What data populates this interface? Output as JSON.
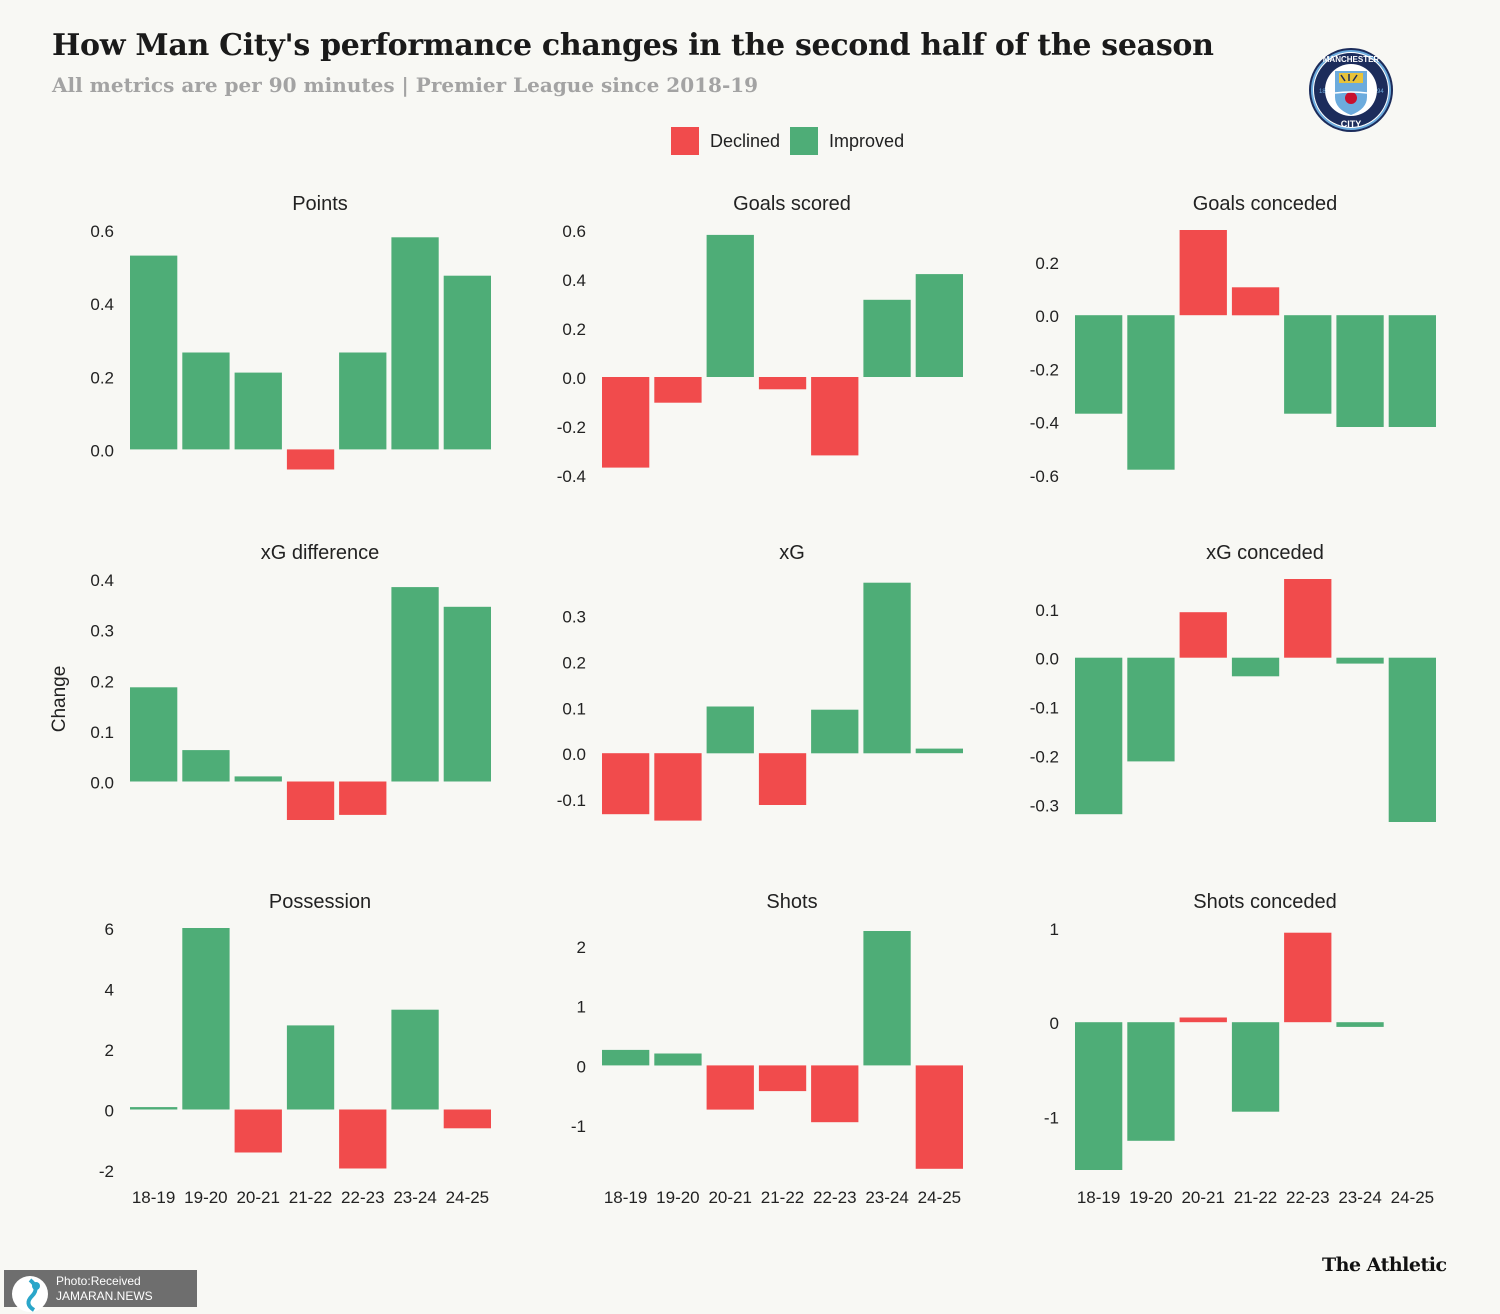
{
  "title": "How Man City's performance changes in the second half of the season",
  "subtitle": "All metrics are per 90 minutes | Premier League since 2018-19",
  "legend": {
    "declined": "Declined",
    "improved": "Improved"
  },
  "y_axis_label": "Change",
  "colors": {
    "declined": "#f14b4c",
    "improved": "#4ead77",
    "background": "#f8f8f4"
  },
  "badge": {
    "top_text": "MANCHESTER",
    "bottom_text": "CITY",
    "left_num": "18",
    "right_num": "94",
    "icon": "man-city-crest-icon"
  },
  "credit": "The Athletic",
  "photo_credit": {
    "line1": "Photo:Received",
    "line2": "JAMARAN.NEWS"
  },
  "chart_data": [
    {
      "type": "bar",
      "title": "Points",
      "categories": [
        "18-19",
        "19-20",
        "20-21",
        "21-22",
        "22-23",
        "23-24",
        "24-25"
      ],
      "values": [
        0.53,
        0.265,
        0.21,
        -0.055,
        0.265,
        0.58,
        0.475
      ],
      "status": [
        "improved",
        "improved",
        "improved",
        "declined",
        "improved",
        "improved",
        "improved"
      ],
      "ylim": [
        -0.07,
        0.6
      ],
      "yticks": [
        0.0,
        0.2,
        0.4,
        0.6
      ],
      "tick_labels": [
        "0.0",
        "0.2",
        "0.4",
        "0.6"
      ]
    },
    {
      "type": "bar",
      "title": "Goals scored",
      "categories": [
        "18-19",
        "19-20",
        "20-21",
        "21-22",
        "22-23",
        "23-24",
        "24-25"
      ],
      "values": [
        -0.37,
        -0.105,
        0.58,
        -0.05,
        -0.32,
        0.315,
        0.42
      ],
      "status": [
        "declined",
        "declined",
        "improved",
        "declined",
        "declined",
        "improved",
        "improved"
      ],
      "ylim": [
        -0.4,
        0.6
      ],
      "yticks": [
        -0.4,
        -0.2,
        0.0,
        0.2,
        0.4,
        0.6
      ],
      "tick_labels": [
        "-0.4",
        "-0.2",
        "0.0",
        "0.2",
        "0.4",
        "0.6"
      ]
    },
    {
      "type": "bar",
      "title": "Goals conceded",
      "categories": [
        "18-19",
        "19-20",
        "20-21",
        "21-22",
        "22-23",
        "23-24",
        "24-25"
      ],
      "values": [
        -0.37,
        -0.58,
        0.32,
        0.105,
        -0.37,
        -0.42,
        -0.42
      ],
      "status": [
        "improved",
        "improved",
        "declined",
        "declined",
        "improved",
        "improved",
        "improved"
      ],
      "ylim": [
        -0.6,
        0.32
      ],
      "yticks": [
        -0.6,
        -0.4,
        -0.2,
        0.0,
        0.2
      ],
      "tick_labels": [
        "-0.6",
        "-0.4",
        "-0.2",
        "0.0",
        "0.2"
      ]
    },
    {
      "type": "bar",
      "title": "xG difference",
      "categories": [
        "18-19",
        "19-20",
        "20-21",
        "21-22",
        "22-23",
        "23-24",
        "24-25"
      ],
      "values": [
        0.186,
        0.062,
        0.01,
        -0.076,
        -0.066,
        0.384,
        0.345
      ],
      "status": [
        "improved",
        "improved",
        "improved",
        "declined",
        "declined",
        "improved",
        "improved"
      ],
      "ylim": [
        -0.08,
        0.4
      ],
      "yticks": [
        0.0,
        0.1,
        0.2,
        0.3,
        0.4
      ],
      "tick_labels": [
        "0.0",
        "0.1",
        "0.2",
        "0.3",
        "0.4"
      ]
    },
    {
      "type": "bar",
      "title": "xG",
      "categories": [
        "18-19",
        "19-20",
        "20-21",
        "21-22",
        "22-23",
        "23-24",
        "24-25"
      ],
      "values": [
        -0.133,
        -0.147,
        0.102,
        -0.113,
        0.095,
        0.372,
        0.01
      ],
      "status": [
        "declined",
        "declined",
        "improved",
        "declined",
        "improved",
        "improved",
        "improved"
      ],
      "ylim": [
        -0.15,
        0.38
      ],
      "yticks": [
        -0.1,
        0.0,
        0.1,
        0.2,
        0.3
      ],
      "tick_labels": [
        "-0.1",
        "0.0",
        "0.1",
        "0.2",
        "0.3"
      ]
    },
    {
      "type": "bar",
      "title": "xG conceded",
      "categories": [
        "18-19",
        "19-20",
        "20-21",
        "21-22",
        "22-23",
        "23-24",
        "24-25"
      ],
      "values": [
        -0.32,
        -0.212,
        0.093,
        -0.038,
        0.161,
        -0.012,
        -0.336
      ],
      "status": [
        "improved",
        "improved",
        "declined",
        "improved",
        "declined",
        "improved",
        "improved"
      ],
      "ylim": [
        -0.336,
        0.161
      ],
      "yticks": [
        -0.3,
        -0.2,
        -0.1,
        0.0,
        0.1
      ],
      "tick_labels": [
        "-0.3",
        "-0.2",
        "-0.1",
        "0.0",
        "0.1"
      ]
    },
    {
      "type": "bar",
      "title": "Possession",
      "categories": [
        "18-19",
        "19-20",
        "20-21",
        "21-22",
        "22-23",
        "23-24",
        "24-25"
      ],
      "values": [
        0.08,
        6.0,
        -1.42,
        2.78,
        -1.95,
        3.3,
        -0.62
      ],
      "status": [
        "improved",
        "improved",
        "declined",
        "improved",
        "declined",
        "improved",
        "declined"
      ],
      "ylim": [
        -2,
        6
      ],
      "yticks": [
        -2,
        0,
        2,
        4,
        6
      ],
      "tick_labels": [
        "-2",
        "0",
        "2",
        "4",
        "6"
      ]
    },
    {
      "type": "bar",
      "title": "Shots",
      "categories": [
        "18-19",
        "19-20",
        "20-21",
        "21-22",
        "22-23",
        "23-24",
        "24-25"
      ],
      "values": [
        0.26,
        0.2,
        -0.74,
        -0.43,
        -0.95,
        2.25,
        -1.73
      ],
      "status": [
        "improved",
        "improved",
        "declined",
        "declined",
        "declined",
        "improved",
        "declined"
      ],
      "ylim": [
        -1.75,
        2.3
      ],
      "yticks": [
        -1,
        0,
        1,
        2
      ],
      "tick_labels": [
        "-1",
        "0",
        "1",
        "2"
      ]
    },
    {
      "type": "bar",
      "title": "Shots conceded",
      "categories": [
        "18-19",
        "19-20",
        "20-21",
        "21-22",
        "22-23",
        "23-24",
        "24-25"
      ],
      "values": [
        -1.57,
        -1.26,
        0.05,
        -0.95,
        0.95,
        -0.05,
        0.0
      ],
      "status": [
        "improved",
        "improved",
        "declined",
        "improved",
        "declined",
        "improved",
        "improved"
      ],
      "ylim": [
        -1.57,
        1.0
      ],
      "yticks": [
        -1,
        0,
        1
      ],
      "tick_labels": [
        "-1",
        "0",
        "1"
      ]
    }
  ]
}
